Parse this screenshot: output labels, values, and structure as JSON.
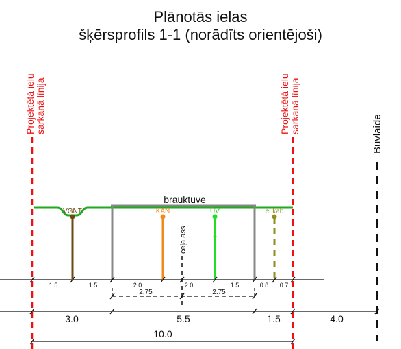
{
  "title": {
    "line1": "Plānotās ielas",
    "line2": "šķērsprofils 1-1 (norādīts orientējoši)"
  },
  "red_lines": {
    "label_line1": "Projektētā ielu",
    "label_line2": "sarkanā līnija"
  },
  "build_line_label": "Būvlaide",
  "carriageway_label": "brauktuve",
  "axis_label": "ceļa ass",
  "utilities": [
    {
      "id": "vgnt",
      "label": "VGNT",
      "color": "#6b4a12"
    },
    {
      "id": "kan",
      "label": "KAN",
      "color": "#f08a1a"
    },
    {
      "id": "uv",
      "label": "ŪV",
      "color": "#22dd22"
    },
    {
      "id": "elkab",
      "label": "el.kab",
      "color": "#8f8f1f"
    }
  ],
  "small_dims": [
    "1.5",
    "1.5",
    "2.0",
    "2.0",
    "1.5",
    "0.8",
    "0.7"
  ],
  "mid_dims": [
    "2.75",
    "2.75"
  ],
  "main_dims": [
    "3.0",
    "5.5",
    "1.5",
    "4.0"
  ],
  "total_dim": "10.0"
}
